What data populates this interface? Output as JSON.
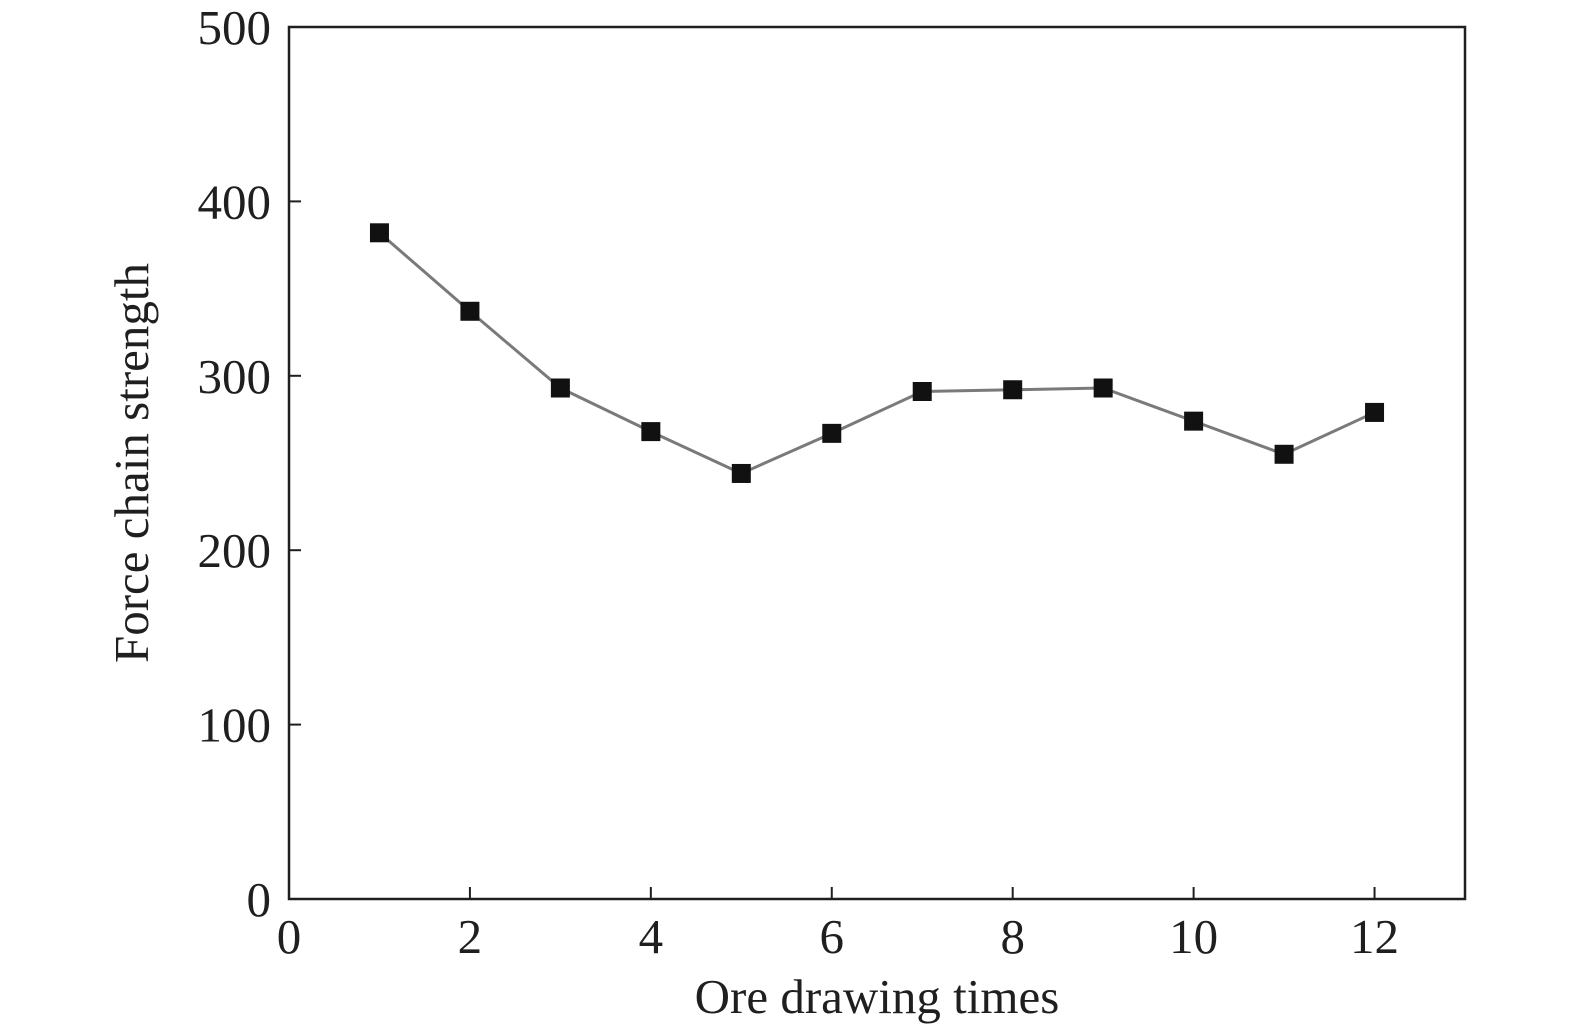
{
  "chart_data": {
    "type": "line",
    "title": "",
    "xlabel": "Ore drawing times",
    "ylabel": "Force chain strength",
    "xlim": [
      0,
      13
    ],
    "ylim": [
      0,
      500
    ],
    "x_ticks": [
      0,
      2,
      4,
      6,
      8,
      10,
      12
    ],
    "x_tick_labels": [
      "0",
      "2",
      "4",
      "6",
      "8",
      "10",
      "12"
    ],
    "y_ticks": [
      0,
      100,
      200,
      300,
      400,
      500
    ],
    "y_tick_labels": [
      "0",
      "100",
      "200",
      "300",
      "400",
      "500"
    ],
    "grid": false,
    "legend": "none",
    "series": [
      {
        "marker": "square",
        "line_color": "#7a7a7a",
        "marker_color": "#111111",
        "x": [
          1,
          2,
          3,
          4,
          5,
          6,
          7,
          8,
          9,
          10,
          11,
          12
        ],
        "y": [
          382,
          337,
          293,
          268,
          244,
          267,
          291,
          292,
          293,
          274,
          255,
          279
        ]
      }
    ]
  }
}
